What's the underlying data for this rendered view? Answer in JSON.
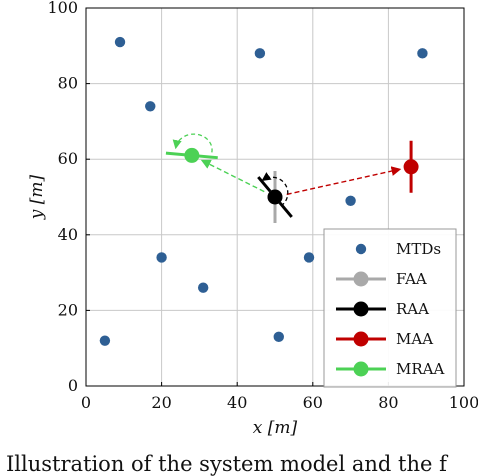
{
  "chart_data": {
    "type": "scatter",
    "xlabel": "x [m]",
    "ylabel": "y [m]",
    "xlim": [
      0,
      100
    ],
    "ylim": [
      0,
      100
    ],
    "xticks": [
      0,
      20,
      40,
      60,
      80,
      100
    ],
    "yticks": [
      0,
      20,
      40,
      60,
      80,
      100
    ],
    "grid": true,
    "legend_position": "bottom-right",
    "colors": {
      "mtd": "#2e5f94",
      "faa": "#a9a9a9",
      "raa": "#000000",
      "maa": "#c00000",
      "mraa": "#4cd155"
    },
    "legend": [
      {
        "key": "mtd",
        "label": "MTDs",
        "kind": "dot"
      },
      {
        "key": "faa",
        "label": "FAA",
        "kind": "line-dot"
      },
      {
        "key": "raa",
        "label": "RAA",
        "kind": "line-dot"
      },
      {
        "key": "maa",
        "label": "MAA",
        "kind": "line-dot"
      },
      {
        "key": "mraa",
        "label": "MRAA",
        "kind": "line-dot"
      }
    ],
    "mtds": [
      {
        "x": 9,
        "y": 91
      },
      {
        "x": 46,
        "y": 88
      },
      {
        "x": 89,
        "y": 88
      },
      {
        "x": 17,
        "y": 74
      },
      {
        "x": 70,
        "y": 49
      },
      {
        "x": 20,
        "y": 34
      },
      {
        "x": 59,
        "y": 34
      },
      {
        "x": 31,
        "y": 26
      },
      {
        "x": 5,
        "y": 12
      },
      {
        "x": 51,
        "y": 13
      }
    ],
    "arrays": [
      {
        "key": "faa",
        "x": 50,
        "y": 50,
        "orientation_deg": 90
      },
      {
        "key": "raa",
        "x": 50,
        "y": 50,
        "orientation_deg": -50
      },
      {
        "key": "maa",
        "x": 86,
        "y": 58,
        "orientation_deg": 90
      },
      {
        "key": "mraa",
        "x": 28,
        "y": 61,
        "orientation_deg": -5
      }
    ],
    "movements": [
      {
        "from": [
          50,
          50
        ],
        "to": [
          86,
          58
        ],
        "color_key": "maa"
      },
      {
        "from": [
          50,
          50
        ],
        "to": [
          28,
          61
        ],
        "color_key": "mraa"
      }
    ]
  },
  "caption": "Illustration of the system model and the f"
}
